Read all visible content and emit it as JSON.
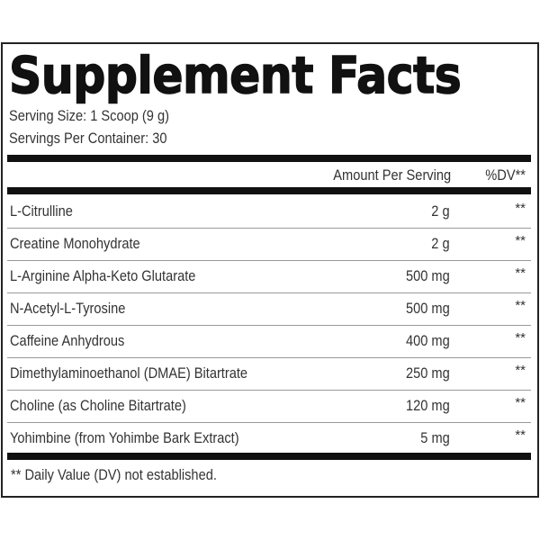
{
  "title": "Supplement Facts",
  "serving_size": "Serving Size: 1 Scoop (9 g)",
  "servings_per_container": "Servings Per Container: 30",
  "header": {
    "amount": "Amount Per Serving",
    "dv": "%DV**"
  },
  "rows": [
    {
      "name": "L-Citrulline",
      "amount": "2 g",
      "dv": "**"
    },
    {
      "name": "Creatine Monohydrate",
      "amount": "2 g",
      "dv": "**"
    },
    {
      "name": "L-Arginine Alpha-Keto Glutarate",
      "amount": "500 mg",
      "dv": "**"
    },
    {
      "name": "N-Acetyl-L-Tyrosine",
      "amount": "500 mg",
      "dv": "**"
    },
    {
      "name": "Caffeine Anhydrous",
      "amount": "400 mg",
      "dv": "**"
    },
    {
      "name": "Dimethylaminoethanol (DMAE) Bitartrate",
      "amount": "250 mg",
      "dv": "**"
    },
    {
      "name": "Choline (as Choline Bitartrate)",
      "amount": "120 mg",
      "dv": "**"
    },
    {
      "name": "Yohimbine (from Yohimbe Bark Extract)",
      "amount": "5 mg",
      "dv": "**"
    }
  ],
  "footnote": "** Daily Value (DV) not established."
}
